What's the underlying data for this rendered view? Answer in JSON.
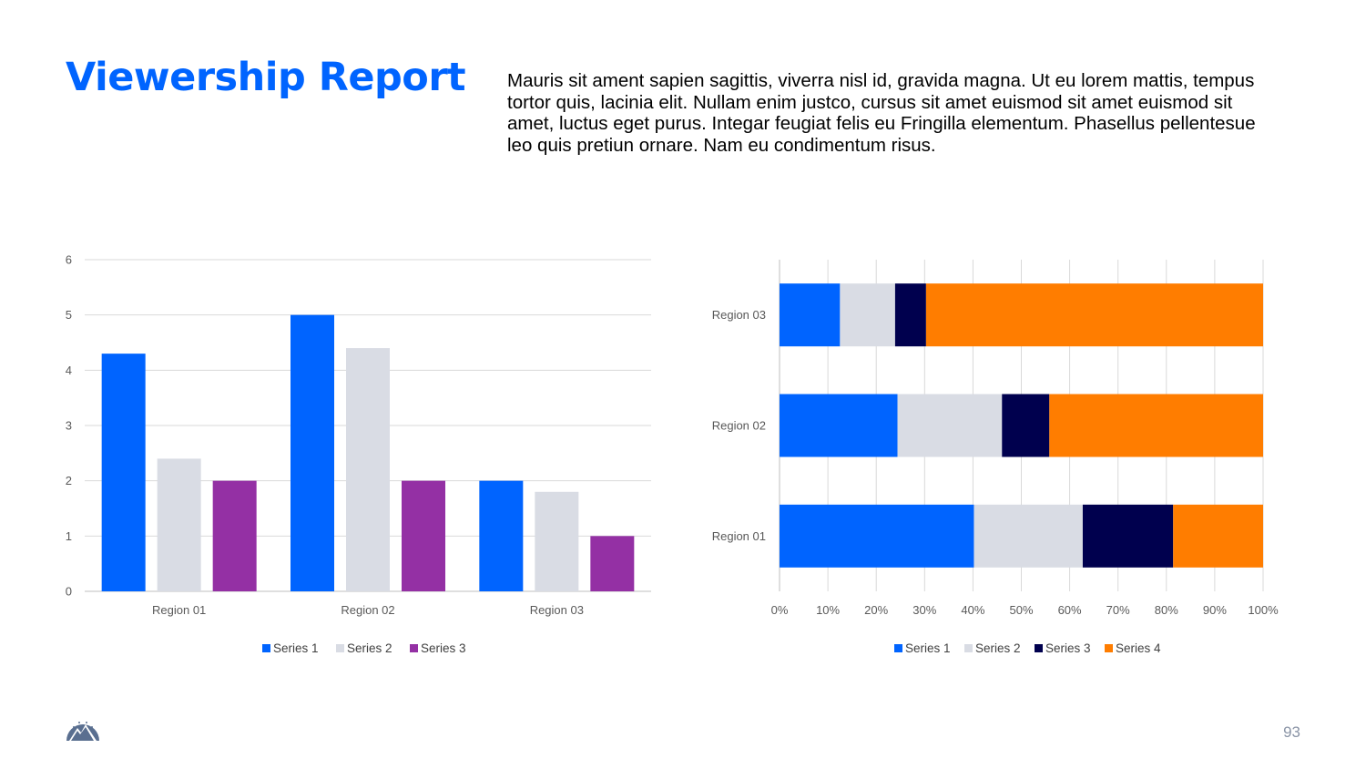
{
  "header": {
    "title": "Viewership Report",
    "description": "Mauris sit ament sapien sagittis, viverra nisl id, gravida magna. Ut eu lorem mattis, tempus tortor quis, lacinia elit. Nullam enim justco, cursus sit amet euismod sit amet euismod sit amet, luctus eget purus. Integar feugiat felis eu Fringilla elementum. Phasellus pellentesue leo quis pretiun ornare. Nam eu condimentum risus."
  },
  "footer": {
    "page_number": "93",
    "logo_icon": "mountain-stars-logo"
  },
  "colors": {
    "accent": "#0064ff",
    "series1": "#0064ff",
    "series2": "#d9dce4",
    "series3_clustered": "#9430a4",
    "series3_stacked": "#00004e",
    "series4": "#ff7d00",
    "grid": "#d9d9d9"
  },
  "chart_data": [
    {
      "type": "bar",
      "orientation": "vertical",
      "categories": [
        "Region 01",
        "Region 02",
        "Region 03"
      ],
      "series": [
        {
          "name": "Series 1",
          "values": [
            4.3,
            5,
            2
          ]
        },
        {
          "name": "Series 2",
          "values": [
            2.4,
            4.4,
            1.8
          ]
        },
        {
          "name": "Series 3",
          "values": [
            2,
            2,
            1
          ]
        }
      ],
      "ylim": [
        0,
        6
      ],
      "yticks": [
        "0",
        "1",
        "2",
        "3",
        "4",
        "5",
        "6"
      ],
      "grid": true,
      "legend": "bottom"
    },
    {
      "type": "bar",
      "orientation": "horizontal",
      "stacked": "percent",
      "categories": [
        "Region 01",
        "Region 02",
        "Region 03"
      ],
      "series": [
        {
          "name": "Series 1",
          "values": [
            40.2,
            24.4,
            12.5
          ]
        },
        {
          "name": "Series 2",
          "values": [
            22.5,
            21.6,
            11.4
          ]
        },
        {
          "name": "Series 3",
          "values": [
            18.7,
            9.8,
            6.4
          ]
        },
        {
          "name": "Series 4",
          "values": [
            18.6,
            44.2,
            69.7
          ]
        }
      ],
      "xlim": [
        0,
        100
      ],
      "xticks": [
        "0%",
        "10%",
        "20%",
        "30%",
        "40%",
        "50%",
        "60%",
        "70%",
        "80%",
        "90%",
        "100%"
      ],
      "grid": true,
      "legend": "bottom"
    }
  ]
}
